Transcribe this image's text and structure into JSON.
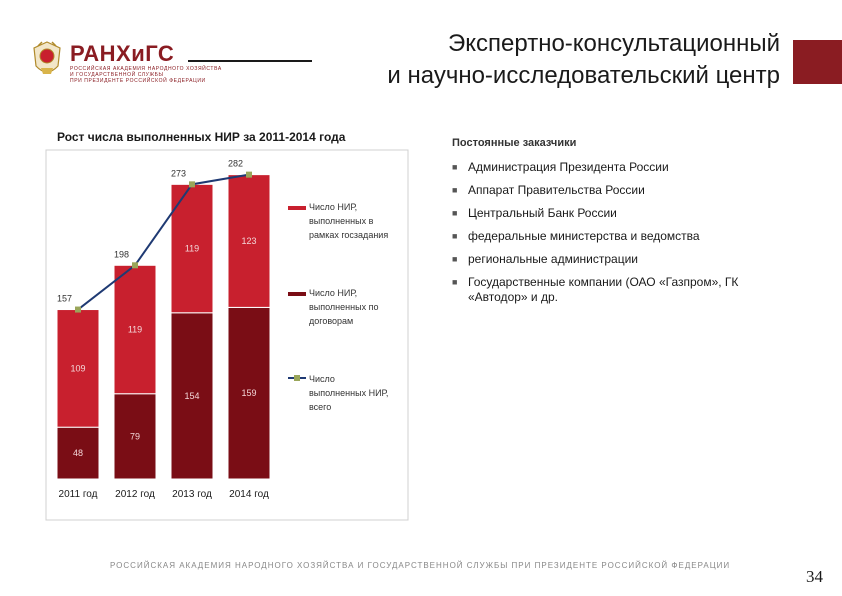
{
  "header": {
    "logo_text": "РАНХиГС",
    "logo_subtext": [
      "РОССИЙСКАЯ АКАДЕМИЯ НАРОДНОГО ХОЗЯЙСТВА",
      "И ГОСУДАРСТВЕННОЙ СЛУЖБЫ",
      "ПРИ ПРЕЗИДЕНТЕ РОССИЙСКОЙ ФЕДЕРАЦИИ"
    ],
    "title_line1": "Экспертно-консультационный",
    "title_line2": "и научно-исследовательский центр"
  },
  "colors": {
    "brand": "#8a1c22",
    "bar_goszadanie": "#c8202e",
    "bar_dogovor": "#7a0d15",
    "total_line": "#1f3a73",
    "total_marker": "#9aa65a"
  },
  "chart_data": {
    "type": "bar",
    "stacked": true,
    "title": "Рост числа выполненных НИР за 2011-2014 года",
    "categories": [
      "2011 год",
      "2012 год",
      "2013 год",
      "2014 год"
    ],
    "series": [
      {
        "name": "Число НИР, выполненных по договорам",
        "values": [
          48,
          79,
          154,
          159
        ]
      },
      {
        "name": "Число НИР, выполненных в рамках госзадания",
        "values": [
          109,
          119,
          119,
          123
        ]
      }
    ],
    "line_series": {
      "name": "Число выполненных НИР, всего",
      "values": [
        157,
        198,
        273,
        282
      ]
    },
    "ylim": [
      0,
      290
    ],
    "grid": false,
    "legend_position": "right"
  },
  "customers": {
    "title": "Постоянные заказчики",
    "items": [
      "Администрация Президента России",
      "Аппарат Правительства России",
      "Центральный Банк России",
      "федеральные министерства и ведомства",
      "региональные администрации",
      "Государственные компании (ОАО «Газпром», ГК «Автодор» и др."
    ]
  },
  "footer": {
    "text": "РОССИЙСКАЯ АКАДЕМИЯ НАРОДНОГО ХОЗЯЙСТВА И ГОСУДАРСТВЕННОЙ СЛУЖБЫ ПРИ ПРЕЗИДЕНТЕ РОССИЙСКОЙ ФЕДЕРАЦИИ",
    "page_number": "34"
  }
}
